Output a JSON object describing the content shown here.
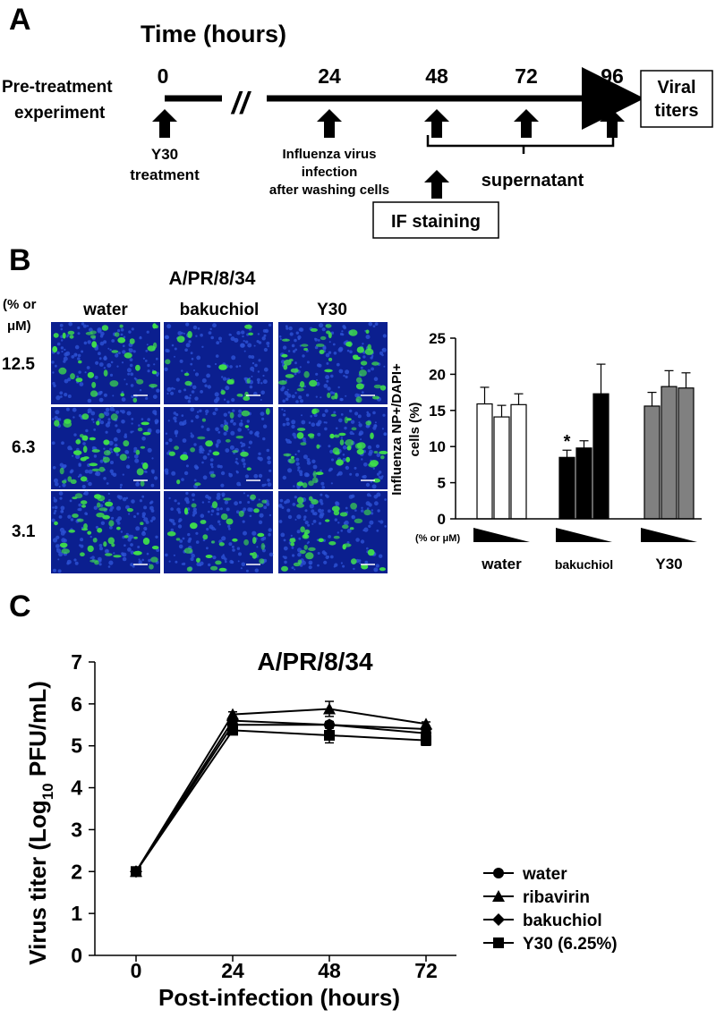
{
  "panel_a": {
    "letter": "A",
    "time_title": "Time (hours)",
    "experiment_label": [
      "Pre-treatment",
      "experiment"
    ],
    "timepoints": [
      "0",
      "24",
      "48",
      "72",
      "96"
    ],
    "break_symbol": "//",
    "endpoint_box": [
      "Viral",
      "titers"
    ],
    "treatment_label": [
      "Y30",
      "treatment"
    ],
    "infection_label": [
      "Influenza virus",
      "infection",
      "after washing cells"
    ],
    "supernatant_label": "supernatant",
    "if_box": "IF staining"
  },
  "panel_b": {
    "letter": "B",
    "virus_title": "A/PR/8/34",
    "unit_label": [
      "(% or",
      "μM)"
    ],
    "column_labels": [
      "water",
      "bakuchiol",
      "Y30"
    ],
    "row_labels": [
      "12.5",
      "6.3",
      "3.1"
    ],
    "image_tile_colors": {
      "background": "#0b1f8f",
      "nuclei": "#2d52d6",
      "infected": "#3fe04a",
      "scale_bar": "#ffffff"
    },
    "green_cell_density": [
      [
        0.55,
        0.12,
        0.75
      ],
      [
        0.65,
        0.25,
        0.7
      ],
      [
        0.7,
        0.5,
        0.55
      ]
    ],
    "dose_label": "(% or μM)"
  },
  "chart_data": [
    {
      "type": "bar",
      "panel": "B",
      "ylabel": [
        "Influenza NP+/DAPI+",
        "cells (%)"
      ],
      "xlabel": "",
      "ylim": [
        0,
        25
      ],
      "yticks": [
        "0",
        "5",
        "10",
        "15",
        "20",
        "25"
      ],
      "groups": [
        {
          "name": "water",
          "values": [
            15.9,
            14.1,
            15.8
          ],
          "errors": [
            2.3,
            1.6,
            1.5
          ],
          "color": "#ffffff"
        },
        {
          "name": "bakuchiol",
          "values": [
            8.5,
            9.8,
            17.3
          ],
          "errors": [
            1.0,
            1.0,
            4.1
          ],
          "color": "#000000"
        },
        {
          "name": "Y30",
          "values": [
            15.6,
            18.3,
            18.1
          ],
          "errors": [
            1.9,
            2.2,
            2.1
          ],
          "color": "#808080"
        }
      ],
      "annotations": [
        {
          "group": 1,
          "bar": 0,
          "text": "*"
        }
      ],
      "dose_gradient": "decreasing"
    },
    {
      "type": "line",
      "panel": "C",
      "letter": "C",
      "title": "A/PR/8/34",
      "xlabel": "Post-infection (hours)",
      "ylabel": {
        "main": "Virus titer (Log",
        "sub": "10",
        "tail": " PFU/mL)"
      },
      "x": [
        "0",
        "24",
        "48",
        "72"
      ],
      "ylim": [
        0,
        7
      ],
      "yticks": [
        "0",
        "1",
        "2",
        "3",
        "4",
        "5",
        "6",
        "7"
      ],
      "series": [
        {
          "name": "water",
          "marker": "circle",
          "values": [
            2.0,
            5.5,
            5.5,
            5.3
          ],
          "errors": [
            0,
            0.05,
            0.08,
            0.06
          ]
        },
        {
          "name": "ribavirin",
          "marker": "triangle",
          "values": [
            2.0,
            5.75,
            5.88,
            5.52
          ],
          "errors": [
            0,
            0.06,
            0.18,
            0.05
          ]
        },
        {
          "name": "bakuchiol",
          "marker": "diamond",
          "values": [
            2.0,
            5.6,
            5.5,
            5.4
          ],
          "errors": [
            0,
            0.05,
            0.07,
            0.05
          ]
        },
        {
          "name": "Y30 (6.25%)",
          "marker": "square",
          "values": [
            2.0,
            5.37,
            5.25,
            5.13
          ],
          "errors": [
            0,
            0.06,
            0.18,
            0.12
          ]
        }
      ],
      "legend_position": "bottom-right"
    }
  ]
}
